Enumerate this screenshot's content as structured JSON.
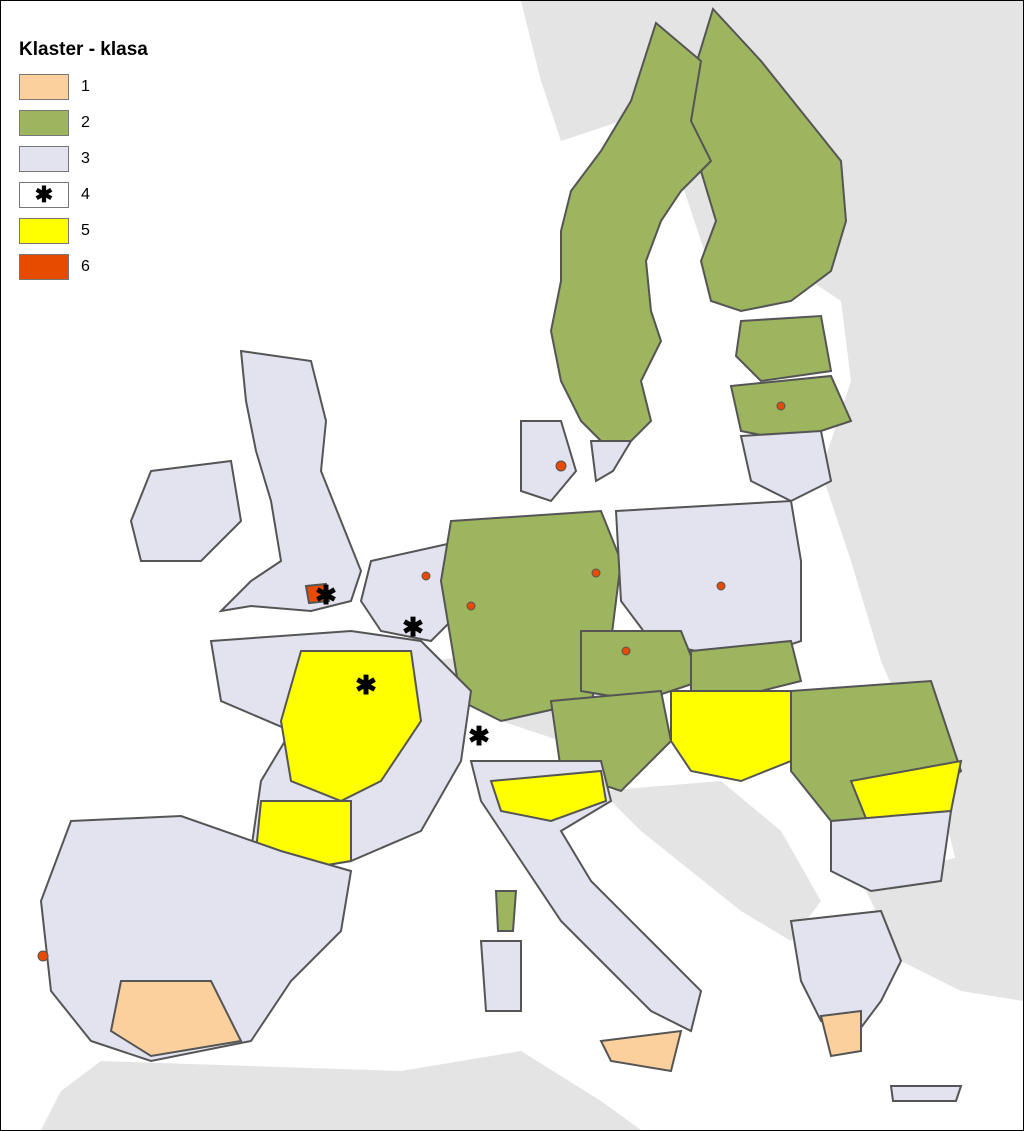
{
  "legend": {
    "title": "Klaster - klasa",
    "items": [
      {
        "label": "1",
        "color": "#fcd09c",
        "symbol": ""
      },
      {
        "label": "2",
        "color": "#9cb55e",
        "symbol": ""
      },
      {
        "label": "3",
        "color": "#e2e3ef",
        "symbol": ""
      },
      {
        "label": "4",
        "color": "#ffffff",
        "symbol": "✱"
      },
      {
        "label": "5",
        "color": "#ffff00",
        "symbol": ""
      },
      {
        "label": "6",
        "color": "#e64b00",
        "symbol": ""
      }
    ]
  },
  "colors": {
    "sea": "#ffffff",
    "non_eu_land": "#e4e4e4",
    "border": "#555555"
  }
}
